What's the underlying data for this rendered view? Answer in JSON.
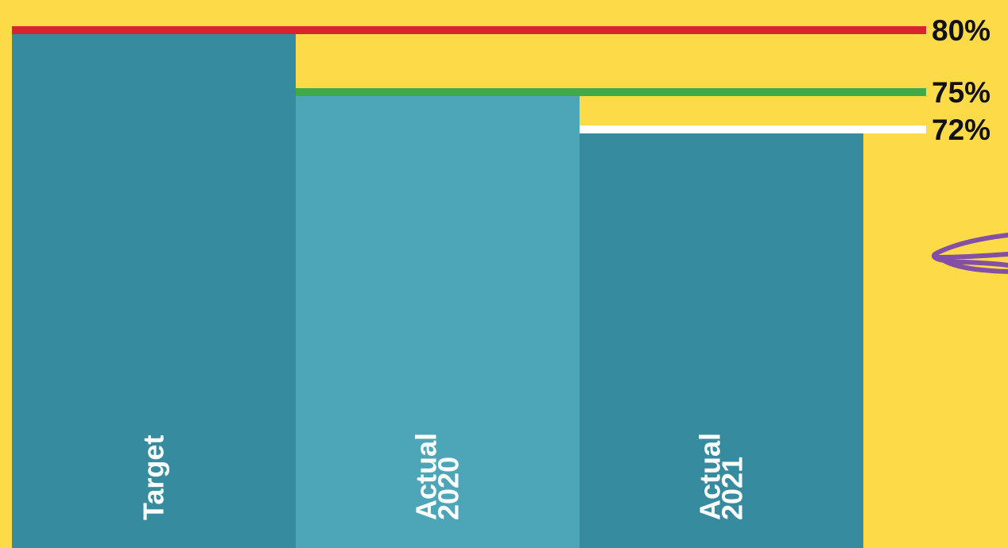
{
  "chart_data": {
    "type": "bar",
    "categories": [
      "Target",
      "Actual 2020",
      "Actual 2021"
    ],
    "category_lines": [
      [
        "Target"
      ],
      [
        "Actual",
        "2020"
      ],
      [
        "Actual",
        "2021"
      ]
    ],
    "values": [
      80,
      75,
      72
    ],
    "value_labels": [
      "80%",
      "75%",
      "72%"
    ],
    "ylim": [
      0,
      80
    ],
    "grid": false,
    "colors": {
      "background": "#FDDA48",
      "bars": [
        "#378B9F",
        "#4CA6B8",
        "#378B9F"
      ],
      "reference_lines": [
        "#D7252E",
        "#3FAA47",
        "#FFFFFF"
      ],
      "decoration": "#8450A6"
    }
  }
}
